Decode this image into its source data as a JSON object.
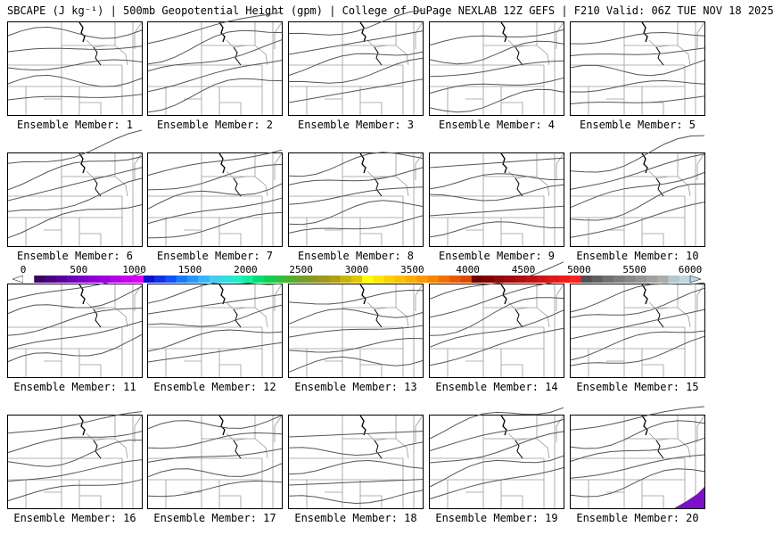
{
  "header": {
    "title": "SBCAPE (J kg⁻¹) | 500mb Geopotential Height (gpm) | College of DuPage NEXLAB 12Z GEFS | F210 Valid: 06Z TUE NOV 18 2025"
  },
  "panels": [
    {
      "label": "Ensemble Member: 1"
    },
    {
      "label": "Ensemble Member: 2"
    },
    {
      "label": "Ensemble Member: 3"
    },
    {
      "label": "Ensemble Member: 4"
    },
    {
      "label": "Ensemble Member: 5"
    },
    {
      "label": "Ensemble Member: 6"
    },
    {
      "label": "Ensemble Member: 7"
    },
    {
      "label": "Ensemble Member: 8"
    },
    {
      "label": "Ensemble Member: 9"
    },
    {
      "label": "Ensemble Member: 10"
    },
    {
      "label": "Ensemble Member: 11"
    },
    {
      "label": "Ensemble Member: 12"
    },
    {
      "label": "Ensemble Member: 13"
    },
    {
      "label": "Ensemble Member: 14"
    },
    {
      "label": "Ensemble Member: 15"
    },
    {
      "label": "Ensemble Member: 16"
    },
    {
      "label": "Ensemble Member: 17"
    },
    {
      "label": "Ensemble Member: 18"
    },
    {
      "label": "Ensemble Member: 19"
    },
    {
      "label": "Ensemble Member: 20"
    }
  ],
  "colorbar": {
    "labels": [
      "0",
      "500",
      "1000",
      "1500",
      "2000",
      "2500",
      "3000",
      "3500",
      "4000",
      "4500",
      "5000",
      "5500",
      "6000"
    ],
    "colors": [
      "#ffffff",
      "#3d0066",
      "#4b0082",
      "#5a00a0",
      "#6a00b8",
      "#7d00c8",
      "#8f00d8",
      "#a000e0",
      "#b400e8",
      "#c800f0",
      "#dc00f8",
      "#1010d0",
      "#1030e8",
      "#1050ff",
      "#1a78ff",
      "#2896ff",
      "#36b4ff",
      "#44cdf0",
      "#30e0e0",
      "#20eec8",
      "#10f0a0",
      "#00e070",
      "#10d050",
      "#30c040",
      "#50b030",
      "#70a028",
      "#8a9a20",
      "#a09818",
      "#b0a010",
      "#c8b408",
      "#e0c800",
      "#ffff00",
      "#ffe800",
      "#ffd000",
      "#ffbe00",
      "#ffac00",
      "#ff9800",
      "#f88400",
      "#f07000",
      "#e85c00",
      "#e04800",
      "#700000",
      "#800000",
      "#900808",
      "#a00a0a",
      "#b00c0c",
      "#c01010",
      "#d01414",
      "#e01818",
      "#f01c1c",
      "#ff2020",
      "#505050",
      "#606060",
      "#707070",
      "#7c7c7c",
      "#888888",
      "#949494",
      "#a0a0a0",
      "#acacac",
      "#b4c8d0",
      "#bcd8e0"
    ]
  },
  "map_icons": {
    "panel_icon": "regional-map-icon",
    "cape_color": "#7a10c8"
  }
}
